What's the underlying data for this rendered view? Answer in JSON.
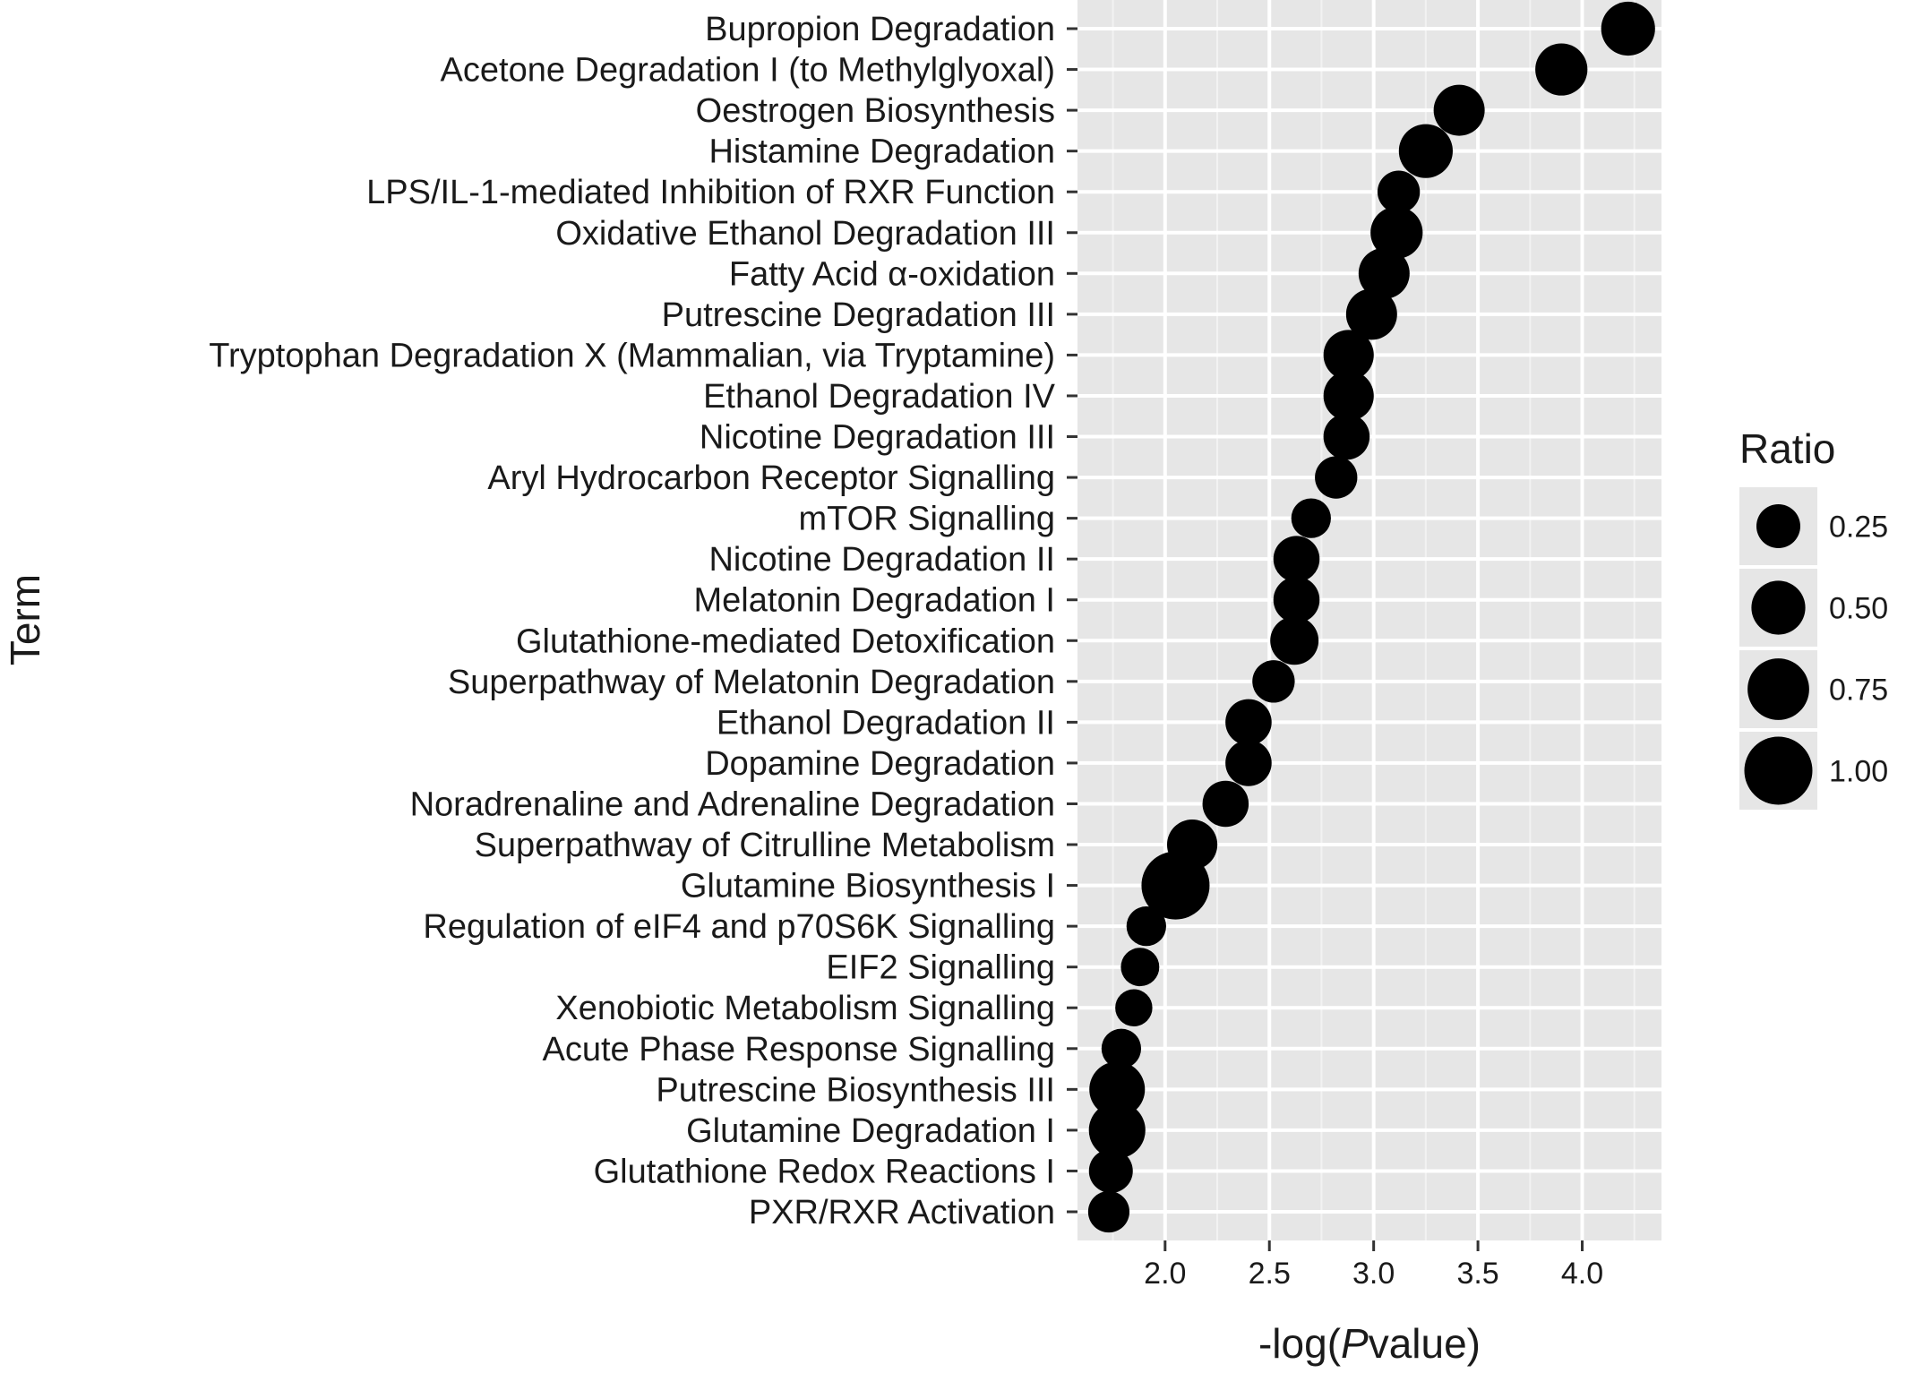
{
  "chart_data": {
    "type": "scatter",
    "xlabel_prefix": "-log(",
    "xlabel_italic": "P",
    "xlabel_suffix": "value)",
    "ylabel": "Term",
    "xlim": [
      1.58,
      4.38
    ],
    "x_ticks": [
      {
        "value": 2.0,
        "label": "2.0"
      },
      {
        "value": 2.5,
        "label": "2.5"
      },
      {
        "value": 3.0,
        "label": "3.0"
      },
      {
        "value": 3.5,
        "label": "3.5"
      },
      {
        "value": 4.0,
        "label": "4.0"
      }
    ],
    "grid": true,
    "legend": {
      "title": "Ratio",
      "placement": "right",
      "entries": [
        {
          "value": 0.25,
          "label": "0.25"
        },
        {
          "value": 0.5,
          "label": "0.50"
        },
        {
          "value": 0.75,
          "label": "0.75"
        },
        {
          "value": 1.0,
          "label": "1.00"
        }
      ]
    },
    "points": [
      {
        "term": "Bupropion Degradation",
        "x": 4.22,
        "ratio": 0.5
      },
      {
        "term": "Acetone Degradation I (to Methylglyoxal)",
        "x": 3.9,
        "ratio": 0.45
      },
      {
        "term": "Oestrogen Biosynthesis",
        "x": 3.41,
        "ratio": 0.42
      },
      {
        "term": "Histamine Degradation",
        "x": 3.25,
        "ratio": 0.5
      },
      {
        "term": "LPS/IL-1-mediated Inhibition of RXR Function",
        "x": 3.12,
        "ratio": 0.22
      },
      {
        "term": "Oxidative Ethanol Degradation III",
        "x": 3.11,
        "ratio": 0.45
      },
      {
        "term": "Fatty Acid α-oxidation",
        "x": 3.05,
        "ratio": 0.42
      },
      {
        "term": "Putrescine Degradation III",
        "x": 2.99,
        "ratio": 0.42
      },
      {
        "term": "Tryptophan Degradation X (Mammalian, via Tryptamine)",
        "x": 2.88,
        "ratio": 0.4
      },
      {
        "term": "Ethanol Degradation IV",
        "x": 2.88,
        "ratio": 0.4
      },
      {
        "term": "Nicotine Degradation III",
        "x": 2.87,
        "ratio": 0.3
      },
      {
        "term": "Aryl Hydrocarbon Receptor Signalling",
        "x": 2.82,
        "ratio": 0.22
      },
      {
        "term": "mTOR Signalling",
        "x": 2.7,
        "ratio": 0.17
      },
      {
        "term": "Nicotine Degradation II",
        "x": 2.63,
        "ratio": 0.3
      },
      {
        "term": "Melatonin Degradation I",
        "x": 2.63,
        "ratio": 0.3
      },
      {
        "term": "Glutathione-mediated Detoxification",
        "x": 2.62,
        "ratio": 0.35
      },
      {
        "term": "Superpathway of Melatonin Degradation",
        "x": 2.52,
        "ratio": 0.22
      },
      {
        "term": "Ethanol Degradation II",
        "x": 2.4,
        "ratio": 0.3
      },
      {
        "term": "Dopamine Degradation",
        "x": 2.4,
        "ratio": 0.3
      },
      {
        "term": "Noradrenaline and Adrenaline Degradation",
        "x": 2.29,
        "ratio": 0.3
      },
      {
        "term": "Superpathway of Citrulline Metabolism",
        "x": 2.13,
        "ratio": 0.4
      },
      {
        "term": "Glutamine Biosynthesis I",
        "x": 2.05,
        "ratio": 1.0
      },
      {
        "term": "Regulation of eIF4 and p70S6K Signalling",
        "x": 1.91,
        "ratio": 0.17
      },
      {
        "term": "EIF2 Signalling",
        "x": 1.88,
        "ratio": 0.15
      },
      {
        "term": "Xenobiotic Metabolism Signalling",
        "x": 1.85,
        "ratio": 0.13
      },
      {
        "term": "Acute Phase Response Signalling",
        "x": 1.79,
        "ratio": 0.17
      },
      {
        "term": "Putrescine Biosynthesis III",
        "x": 1.77,
        "ratio": 0.55
      },
      {
        "term": "Glutamine Degradation I",
        "x": 1.77,
        "ratio": 0.58
      },
      {
        "term": "Glutathione Redox Reactions I",
        "x": 1.74,
        "ratio": 0.25
      },
      {
        "term": "PXR/RXR Activation",
        "x": 1.73,
        "ratio": 0.2
      }
    ]
  }
}
